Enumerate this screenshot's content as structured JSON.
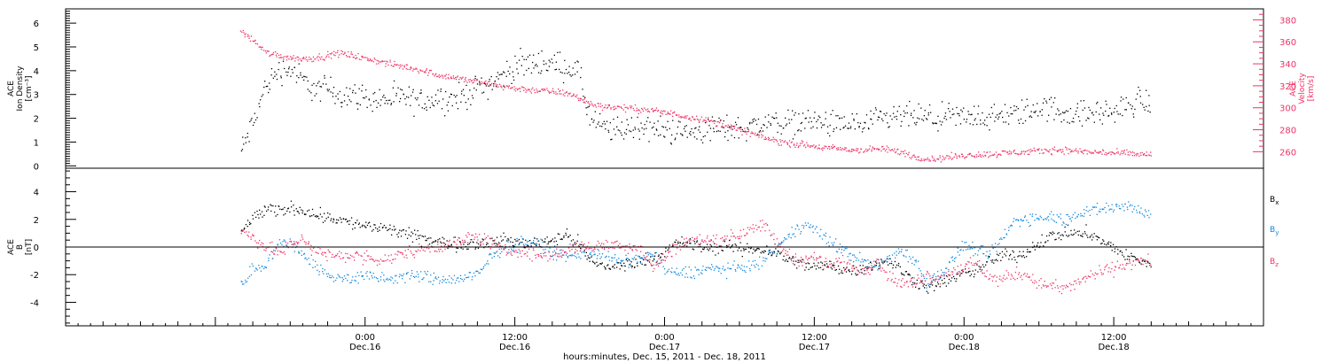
{
  "chart_data": [
    {
      "type": "scatter",
      "panel": "plasma",
      "ylabel_left": [
        "ACE",
        "Ion Density",
        "[cm⁻³]"
      ],
      "ylabel_right": [
        "ACE",
        "Velocity",
        "[km/s]"
      ],
      "ylim_left": [
        -0.1,
        6.6
      ],
      "ylim_right": [
        245,
        390
      ],
      "yticks_left": [
        "0",
        "1",
        "2",
        "3",
        "4",
        "5",
        "6"
      ],
      "yticks_right": [
        "260",
        "280",
        "300",
        "320",
        "340",
        "360",
        "380"
      ],
      "x_unit": "hours since Dec.15 00:00 UTC",
      "series": [
        {
          "color": "#000000",
          "axis": "left",
          "x": [
            14,
            15,
            16,
            17,
            18,
            19,
            20,
            21,
            22,
            23,
            24,
            25,
            26,
            27,
            28,
            29,
            30,
            31,
            32,
            33,
            34,
            35,
            36,
            37,
            38,
            39,
            40,
            41,
            42,
            43,
            44,
            45,
            46,
            47,
            48,
            49,
            50,
            51,
            52,
            53,
            54,
            55,
            56,
            57,
            58,
            59,
            60,
            61,
            62,
            63,
            64,
            65,
            66,
            67,
            68,
            69,
            70,
            71,
            72,
            73,
            74,
            75,
            76,
            77,
            78,
            79,
            80,
            81,
            82,
            83,
            84,
            85,
            86,
            87
          ],
          "values": [
            0.6,
            1.8,
            3.4,
            4.0,
            4.1,
            3.6,
            3.2,
            3.3,
            3.0,
            3.0,
            2.9,
            2.8,
            2.8,
            2.9,
            2.7,
            2.8,
            2.9,
            2.8,
            3.0,
            3.3,
            3.5,
            3.8,
            4.2,
            4.3,
            4.4,
            4.3,
            4.2,
            4.0,
            2.0,
            1.6,
            1.5,
            1.6,
            1.7,
            1.6,
            1.5,
            1.5,
            1.4,
            1.5,
            1.6,
            1.6,
            1.6,
            1.7,
            1.8,
            1.9,
            1.8,
            1.9,
            1.9,
            1.8,
            1.7,
            1.8,
            1.7,
            1.9,
            2.0,
            2.1,
            2.1,
            2.0,
            2.0,
            2.1,
            2.0,
            2.2,
            2.0,
            2.1,
            2.2,
            2.3,
            2.5,
            2.4,
            2.3,
            2.2,
            2.2,
            2.3,
            2.3,
            2.5,
            2.8,
            2.6
          ]
        },
        {
          "color": "#ee3366",
          "axis": "right",
          "x": [
            14,
            15,
            16,
            17,
            18,
            19,
            20,
            21,
            22,
            23,
            24,
            25,
            26,
            27,
            28,
            29,
            30,
            31,
            32,
            33,
            34,
            35,
            36,
            37,
            38,
            39,
            40,
            41,
            42,
            43,
            44,
            45,
            46,
            47,
            48,
            49,
            50,
            51,
            52,
            53,
            54,
            55,
            56,
            57,
            58,
            59,
            60,
            61,
            62,
            63,
            64,
            65,
            66,
            67,
            68,
            69,
            70,
            71,
            72,
            73,
            74,
            75,
            76,
            77,
            78,
            79,
            80,
            81,
            82,
            83,
            84,
            85,
            86,
            87
          ],
          "values": [
            370,
            362,
            351,
            348,
            346,
            345,
            346,
            348,
            350,
            348,
            345,
            343,
            340,
            338,
            336,
            333,
            330,
            328,
            326,
            324,
            322,
            320,
            318,
            317,
            316,
            315,
            314,
            310,
            304,
            302,
            301,
            300,
            299,
            298,
            296,
            294,
            292,
            290,
            287,
            284,
            280,
            277,
            273,
            270,
            268,
            267,
            265,
            264,
            263,
            262,
            262,
            263,
            262,
            260,
            256,
            254,
            254,
            256,
            257,
            258,
            258,
            259,
            260,
            260,
            261,
            262,
            262,
            261,
            260,
            260,
            259,
            259,
            258,
            258
          ]
        }
      ]
    },
    {
      "type": "scatter",
      "panel": "magnetic",
      "ylabel_left": [
        "ACE",
        "B",
        "[nT]"
      ],
      "ylim_left": [
        -5.7,
        5.7
      ],
      "yticks_left": [
        "-4",
        "-2",
        "0",
        "2",
        "4"
      ],
      "zero_line": true,
      "legend_position": "right",
      "x_unit": "hours since Dec.15 00:00 UTC",
      "series": [
        {
          "name": "Bx",
          "label_main": "B",
          "label_sub": "x",
          "color": "#000000",
          "x": [
            14,
            15,
            16,
            17,
            18,
            19,
            20,
            21,
            22,
            23,
            24,
            25,
            26,
            27,
            28,
            29,
            30,
            31,
            32,
            33,
            34,
            35,
            36,
            37,
            38,
            39,
            40,
            41,
            42,
            43,
            44,
            45,
            46,
            47,
            48,
            49,
            50,
            51,
            52,
            53,
            54,
            55,
            56,
            57,
            58,
            59,
            60,
            61,
            62,
            63,
            64,
            65,
            66,
            67,
            68,
            69,
            70,
            71,
            72,
            73,
            74,
            75,
            76,
            77,
            78,
            79,
            80,
            81,
            82,
            83,
            84,
            85,
            86,
            87
          ],
          "values": [
            1.0,
            2.2,
            2.7,
            2.6,
            2.9,
            2.7,
            2.4,
            2.2,
            2.0,
            1.7,
            1.6,
            1.4,
            1.3,
            1.0,
            0.8,
            0.6,
            0.4,
            0.2,
            0.3,
            0.3,
            0.4,
            0.5,
            0.4,
            0.3,
            0.4,
            0.6,
            0.9,
            0.4,
            -1.0,
            -1.3,
            -1.4,
            -1.2,
            -1.0,
            -0.7,
            -0.3,
            0.3,
            0.3,
            0.0,
            -0.1,
            0.2,
            -0.2,
            -0.1,
            -0.2,
            -0.4,
            -0.9,
            -1.2,
            -1.4,
            -1.3,
            -1.5,
            -1.7,
            -1.4,
            -1.2,
            -1.0,
            -1.7,
            -2.4,
            -2.9,
            -2.6,
            -2.2,
            -1.9,
            -1.7,
            -1.0,
            -0.6,
            -0.6,
            -0.3,
            0.3,
            0.9,
            1.0,
            1.1,
            1.0,
            0.4,
            0.0,
            -0.6,
            -1.0,
            -1.2
          ]
        },
        {
          "name": "By",
          "label_main": "B",
          "label_sub": "y",
          "color": "#1188dd",
          "x": [
            14,
            15,
            16,
            17,
            18,
            19,
            20,
            21,
            22,
            23,
            24,
            25,
            26,
            27,
            28,
            29,
            30,
            31,
            32,
            33,
            34,
            35,
            36,
            37,
            38,
            39,
            40,
            41,
            42,
            43,
            44,
            45,
            46,
            47,
            48,
            49,
            50,
            51,
            52,
            53,
            54,
            55,
            56,
            57,
            58,
            59,
            60,
            61,
            62,
            63,
            64,
            65,
            66,
            67,
            68,
            69,
            70,
            71,
            72,
            73,
            74,
            75,
            76,
            77,
            78,
            79,
            80,
            81,
            82,
            83,
            84,
            85,
            86,
            87
          ],
          "values": [
            -2.8,
            -1.5,
            -1.2,
            0.2,
            0.4,
            -0.5,
            -1.3,
            -2.1,
            -2.2,
            -2.2,
            -2.1,
            -2.2,
            -2.3,
            -2.1,
            -2.0,
            -2.2,
            -2.3,
            -2.3,
            -2.2,
            -2.0,
            -0.8,
            0.0,
            0.2,
            0.4,
            0.2,
            -0.3,
            -0.8,
            -0.4,
            -0.3,
            -0.5,
            -0.9,
            -1.1,
            -0.8,
            -0.5,
            -1.6,
            -1.9,
            -1.8,
            -1.6,
            -1.5,
            -1.6,
            -1.5,
            -1.3,
            -0.8,
            0.0,
            0.8,
            1.7,
            1.4,
            0.5,
            0.0,
            -0.6,
            -1.0,
            -1.4,
            -0.7,
            -0.2,
            -0.9,
            -2.5,
            -2.0,
            -1.0,
            0.2,
            -0.3,
            -0.5,
            0.6,
            1.9,
            2.1,
            2.2,
            2.3,
            2.0,
            2.5,
            2.6,
            2.8,
            2.9,
            3.1,
            2.7,
            2.3
          ]
        },
        {
          "name": "Bz",
          "label_main": "B",
          "label_sub": "z",
          "color": "#ee3366",
          "x": [
            14,
            15,
            16,
            17,
            18,
            19,
            20,
            21,
            22,
            23,
            24,
            25,
            26,
            27,
            28,
            29,
            30,
            31,
            32,
            33,
            34,
            35,
            36,
            37,
            38,
            39,
            40,
            41,
            42,
            43,
            44,
            45,
            46,
            47,
            48,
            49,
            50,
            51,
            52,
            53,
            54,
            55,
            56,
            57,
            58,
            59,
            60,
            61,
            62,
            63,
            64,
            65,
            66,
            67,
            68,
            69,
            70,
            71,
            72,
            73,
            74,
            75,
            76,
            77,
            78,
            79,
            80,
            81,
            82,
            83,
            84,
            85,
            86,
            87
          ],
          "values": [
            1.2,
            0.8,
            0.0,
            -0.4,
            0.2,
            0.7,
            -0.2,
            -0.6,
            -0.5,
            -0.7,
            -0.6,
            -1.0,
            -0.8,
            -0.4,
            -0.2,
            0.0,
            0.1,
            0.3,
            0.6,
            0.8,
            0.4,
            -0.3,
            -0.2,
            -0.4,
            -0.6,
            -0.6,
            -0.2,
            0.1,
            0.0,
            0.1,
            0.3,
            0.1,
            0.0,
            -1.4,
            -0.8,
            0.2,
            0.5,
            0.6,
            0.5,
            0.7,
            0.9,
            1.6,
            1.5,
            0.4,
            -0.6,
            -0.9,
            -0.7,
            -1.2,
            -1.0,
            -1.4,
            -1.7,
            -0.9,
            -2.1,
            -2.7,
            -2.5,
            -2.0,
            -2.2,
            -1.7,
            -1.4,
            -1.2,
            -2.2,
            -2.3,
            -1.9,
            -2.0,
            -2.6,
            -2.8,
            -3.0,
            -2.6,
            -2.1,
            -1.7,
            -1.5,
            -1.2,
            -1.0,
            -0.9
          ]
        }
      ]
    }
  ],
  "x_axis": {
    "min_hours": 0,
    "max_hours": 96,
    "major_ticks": [
      {
        "hours": 0,
        "label_time": "",
        "label_day": ""
      },
      {
        "hours": 24,
        "label_time": "0:00",
        "label_day": "Dec.16"
      },
      {
        "hours": 36,
        "label_time": "12:00",
        "label_day": "Dec.16"
      },
      {
        "hours": 48,
        "label_time": "0:00",
        "label_day": "Dec.17"
      },
      {
        "hours": 60,
        "label_time": "12:00",
        "label_day": "Dec.17"
      },
      {
        "hours": 72,
        "label_time": "0:00",
        "label_day": "Dec.18"
      },
      {
        "hours": 84,
        "label_time": "12:00",
        "label_day": "Dec.18"
      }
    ],
    "title": "hours:minutes, Dec. 15, 2011 - Dec. 18, 2011"
  }
}
